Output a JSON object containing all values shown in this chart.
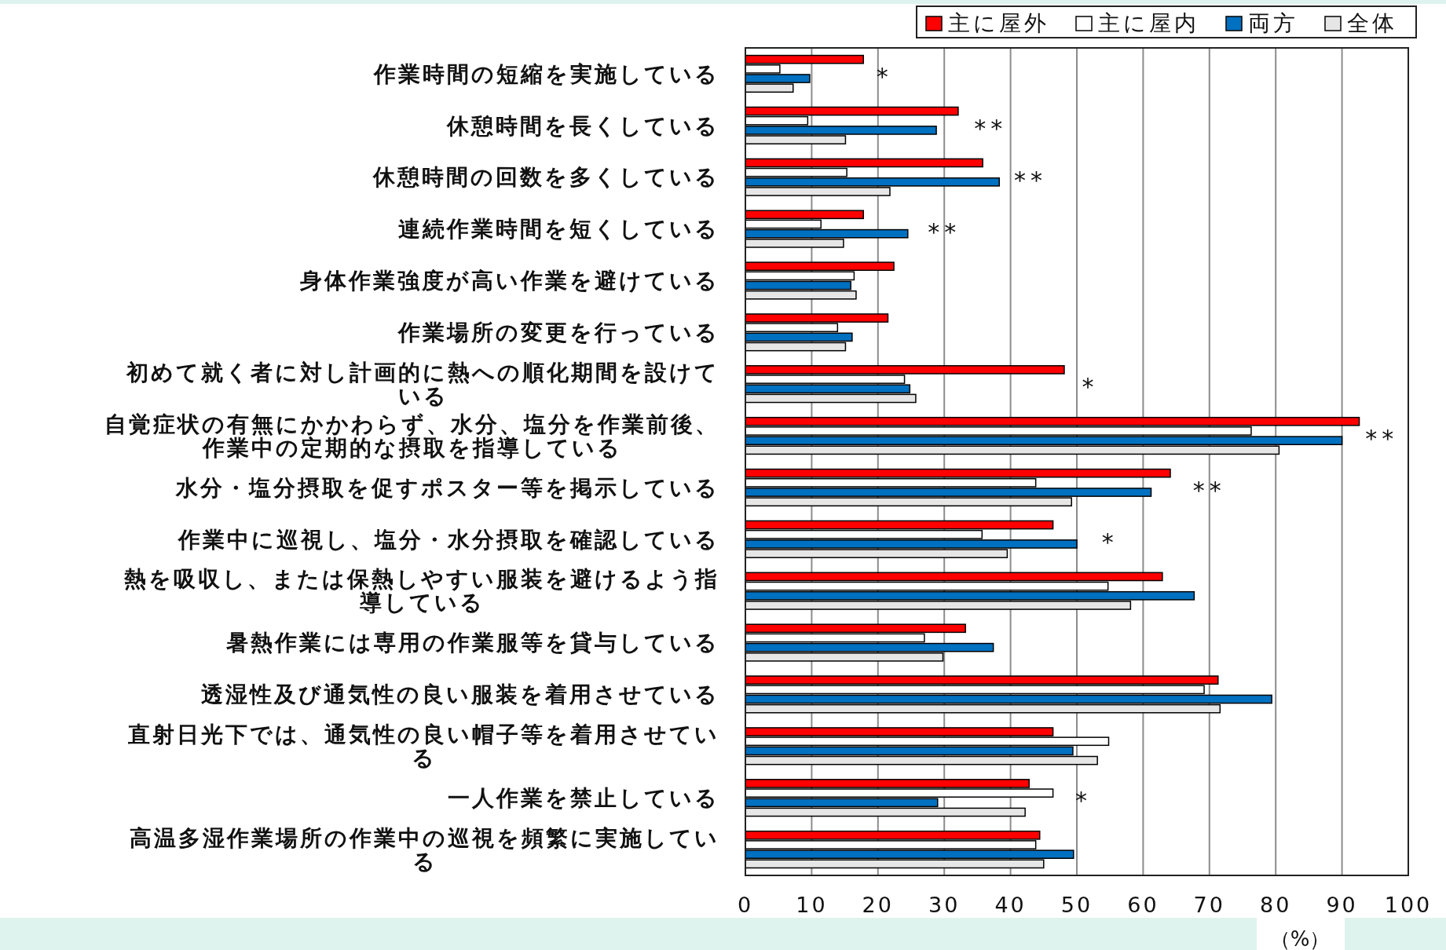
{
  "chart_data": {
    "type": "bar",
    "orientation": "horizontal",
    "categories": [
      "作業時間の短縮を実施している",
      "休憩時間を長くしている",
      "休憩時間の回数を多くしている",
      "連続作業時間を短くしている",
      "身体作業強度が高い作業を避けている",
      "作業場所の変更を行っている",
      "初めて就く者に対し計画的に熱への順化期間を設けている",
      "自覚症状の有無にかかわらず、水分、塩分を作業前後、作業中の定期的な摂取を指導している",
      "水分・塩分摂取を促すポスター等を掲示している",
      "作業中に巡視し、塩分・水分摂取を確認している",
      "熱を吸収し、または保熱しやすい服装を避けるよう指導している",
      "暑熱作業には専用の作業服等を貸与している",
      "透湿性及び通気性の良い服装を着用させている",
      "直射日光下では、通気性の良い帽子等を着用させている",
      "一人作業を禁止している",
      "高温多湿作業場所の作業中の巡視を頻繁に実施している"
    ],
    "series": [
      {
        "name": "主に屋外",
        "color": "#ff0000",
        "values": [
          17.8,
          32.1,
          35.8,
          17.8,
          22.4,
          21.5,
          48.1,
          92.6,
          64.1,
          46.4,
          62.9,
          33.2,
          71.3,
          46.4,
          42.8,
          44.4
        ]
      },
      {
        "name": "主に屋内",
        "color": "#ffffff",
        "values": [
          5.2,
          9.4,
          15.3,
          11.4,
          16.4,
          13.9,
          24.0,
          76.3,
          43.8,
          35.7,
          54.7,
          27.0,
          69.2,
          54.8,
          46.4,
          43.8
        ]
      },
      {
        "name": "両方",
        "color": "#0070c0",
        "values": [
          9.7,
          28.8,
          38.3,
          24.5,
          15.9,
          16.1,
          24.8,
          90.0,
          61.2,
          50.0,
          67.7,
          37.4,
          79.4,
          49.4,
          29.0,
          49.5
        ]
      },
      {
        "name": "全体",
        "color": "#e6e6e6",
        "values": [
          7.2,
          15.1,
          21.8,
          14.8,
          16.7,
          15.1,
          25.7,
          80.5,
          49.2,
          39.5,
          58.1,
          29.8,
          71.6,
          53.1,
          42.2,
          45.0
        ]
      }
    ],
    "xlim": [
      0,
      100
    ],
    "xticks": [
      0,
      10,
      20,
      30,
      40,
      50,
      60,
      70,
      80,
      90,
      100
    ],
    "xlabel": "（%）",
    "grid": "x",
    "legend": "top right",
    "annotations": [
      "*",
      "**",
      "**",
      "**",
      "*",
      "**",
      "**",
      "*",
      "*"
    ]
  }
}
